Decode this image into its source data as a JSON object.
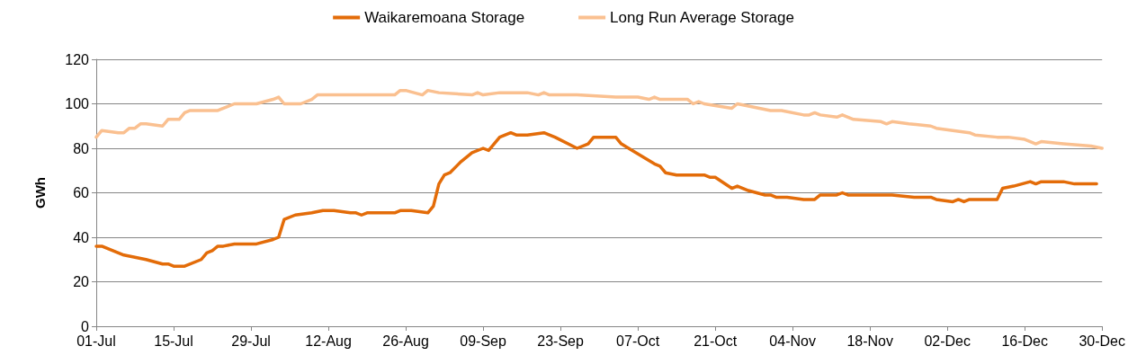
{
  "chart_data": {
    "type": "line",
    "ylabel": "GWh",
    "legend": "top",
    "grid": "y",
    "marker": "none",
    "line_style": "solid",
    "xlim": [
      "--07-01",
      "--12-30"
    ],
    "ylim": [
      0,
      120
    ],
    "yticks": [
      0,
      20,
      40,
      60,
      80,
      100,
      120
    ],
    "xticks": [
      {
        "value": "--07-01",
        "label": "01-Jul"
      },
      {
        "value": "--07-15",
        "label": "15-Jul"
      },
      {
        "value": "--07-29",
        "label": "29-Jul"
      },
      {
        "value": "--08-12",
        "label": "12-Aug"
      },
      {
        "value": "--08-26",
        "label": "26-Aug"
      },
      {
        "value": "--09-09",
        "label": "09-Sep"
      },
      {
        "value": "--09-23",
        "label": "23-Sep"
      },
      {
        "value": "--10-07",
        "label": "07-Oct"
      },
      {
        "value": "--10-21",
        "label": "21-Oct"
      },
      {
        "value": "--11-04",
        "label": "04-Nov"
      },
      {
        "value": "--11-18",
        "label": "18-Nov"
      },
      {
        "value": "--12-02",
        "label": "02-Dec"
      },
      {
        "value": "--12-16",
        "label": "16-Dec"
      },
      {
        "value": "--12-30",
        "label": "30-Dec"
      }
    ],
    "series": [
      {
        "name": "Waikaremoana Storage",
        "color": "#e36c09",
        "x": [
          "--07-01",
          "--07-02",
          "--07-04",
          "--07-06",
          "--07-08",
          "--07-10",
          "--07-13",
          "--07-14",
          "--07-15",
          "--07-17",
          "--07-20",
          "--07-21",
          "--07-22",
          "--07-23",
          "--07-24",
          "--07-26",
          "--07-30",
          "--08-02",
          "--08-03",
          "--08-04",
          "--08-06",
          "--08-09",
          "--08-11",
          "--08-13",
          "--08-16",
          "--08-17",
          "--08-18",
          "--08-19",
          "--08-24",
          "--08-25",
          "--08-27",
          "--08-30",
          "--08-31",
          "--09-01",
          "--09-02",
          "--09-03",
          "--09-05",
          "--09-07",
          "--09-09",
          "--09-10",
          "--09-12",
          "--09-14",
          "--09-15",
          "--09-17",
          "--09-20",
          "--09-22",
          "--09-26",
          "--09-28",
          "--09-29",
          "--10-03",
          "--10-04",
          "--10-06",
          "--10-10",
          "--10-11",
          "--10-12",
          "--10-14",
          "--10-19",
          "--10-20",
          "--10-21",
          "--10-24",
          "--10-25",
          "--10-27",
          "--10-30",
          "--10-31",
          "--11-01",
          "--11-03",
          "--11-06",
          "--11-08",
          "--11-09",
          "--11-12",
          "--11-13",
          "--11-14",
          "--11-22",
          "--11-26",
          "--11-29",
          "--11-30",
          "--12-03",
          "--12-04",
          "--12-05",
          "--12-06",
          "--12-11",
          "--12-12",
          "--12-14",
          "--12-17",
          "--12-18",
          "--12-19",
          "--12-23",
          "--12-25",
          "--12-29"
        ],
        "values": [
          36,
          36,
          34,
          32,
          31,
          30,
          28,
          28,
          27,
          27,
          30,
          33,
          34,
          36,
          36,
          37,
          37,
          39,
          40,
          48,
          50,
          51,
          52,
          52,
          51,
          51,
          50,
          51,
          51,
          52,
          52,
          51,
          54,
          64,
          68,
          69,
          74,
          78,
          80,
          79,
          85,
          87,
          86,
          86,
          87,
          85,
          80,
          82,
          85,
          85,
          82,
          79,
          73,
          72,
          69,
          68,
          68,
          67,
          67,
          62,
          63,
          61,
          59,
          59,
          58,
          58,
          57,
          57,
          59,
          59,
          60,
          59,
          59,
          58,
          58,
          57,
          56,
          57,
          56,
          57,
          57,
          62,
          63,
          65,
          64,
          65,
          65,
          64,
          64
        ]
      },
      {
        "name": "Long Run Average Storage",
        "color": "#fac090",
        "x": [
          "--07-01",
          "--07-02",
          "--07-05",
          "--07-06",
          "--07-07",
          "--07-08",
          "--07-09",
          "--07-10",
          "--07-13",
          "--07-14",
          "--07-16",
          "--07-17",
          "--07-18",
          "--07-23",
          "--07-26",
          "--07-30",
          "--08-02",
          "--08-03",
          "--08-04",
          "--08-07",
          "--08-09",
          "--08-10",
          "--08-24",
          "--08-25",
          "--08-26",
          "--08-29",
          "--08-30",
          "--09-01",
          "--09-07",
          "--09-08",
          "--09-09",
          "--09-12",
          "--09-17",
          "--09-19",
          "--09-20",
          "--09-21",
          "--09-26",
          "--10-03",
          "--10-07",
          "--10-09",
          "--10-10",
          "--10-11",
          "--10-16",
          "--10-17",
          "--10-18",
          "--10-19",
          "--10-24",
          "--10-25",
          "--10-27",
          "--10-29",
          "--10-31",
          "--11-02",
          "--11-06",
          "--11-07",
          "--11-08",
          "--11-09",
          "--11-12",
          "--11-13",
          "--11-15",
          "--11-20",
          "--11-21",
          "--11-22",
          "--11-25",
          "--11-29",
          "--11-30",
          "--12-03",
          "--12-06",
          "--12-07",
          "--12-11",
          "--12-13",
          "--12-16",
          "--12-18",
          "--12-19",
          "--12-23",
          "--12-28",
          "--12-30"
        ],
        "values": [
          85,
          88,
          87,
          87,
          89,
          89,
          91,
          91,
          90,
          93,
          93,
          96,
          97,
          97,
          100,
          100,
          102,
          103,
          100,
          100,
          102,
          104,
          104,
          106,
          106,
          104,
          106,
          105,
          104,
          105,
          104,
          105,
          105,
          104,
          105,
          104,
          104,
          103,
          103,
          102,
          103,
          102,
          102,
          100,
          101,
          100,
          98,
          100,
          99,
          98,
          97,
          97,
          95,
          95,
          96,
          95,
          94,
          95,
          93,
          92,
          91,
          92,
          91,
          90,
          89,
          88,
          87,
          86,
          85,
          85,
          84,
          82,
          83,
          82,
          81,
          80
        ]
      }
    ]
  }
}
